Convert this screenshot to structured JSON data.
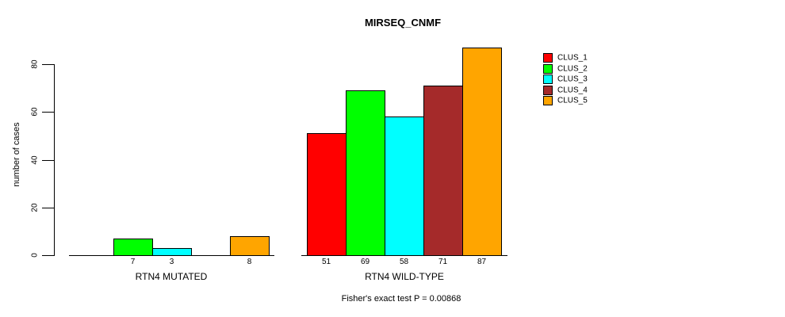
{
  "chart_data": {
    "type": "bar",
    "title": "MIRSEQ_CNMF",
    "ylabel": "number of cases",
    "xlabel": "",
    "yticks": [
      0,
      20,
      40,
      60,
      80
    ],
    "ylim": [
      0,
      88
    ],
    "grid": false,
    "legend_position": "right",
    "categories": [
      "RTN4 MUTATED",
      "RTN4 WILD-TYPE"
    ],
    "series": [
      {
        "name": "CLUS_1",
        "color": "#ff0000",
        "values": [
          0,
          51
        ]
      },
      {
        "name": "CLUS_2",
        "color": "#00ff00",
        "values": [
          7,
          69
        ]
      },
      {
        "name": "CLUS_3",
        "color": "#00ffff",
        "values": [
          3,
          58
        ]
      },
      {
        "name": "CLUS_4",
        "color": "#a52a2a",
        "values": [
          0,
          71
        ]
      },
      {
        "name": "CLUS_5",
        "color": "#ffa500",
        "values": [
          8,
          87
        ]
      }
    ],
    "bar_value_labels": [
      [
        "",
        "7",
        "3",
        "",
        "8"
      ],
      [
        "51",
        "69",
        "58",
        "71",
        "87"
      ]
    ],
    "note": "Fisher's exact test P = 0.00868"
  }
}
